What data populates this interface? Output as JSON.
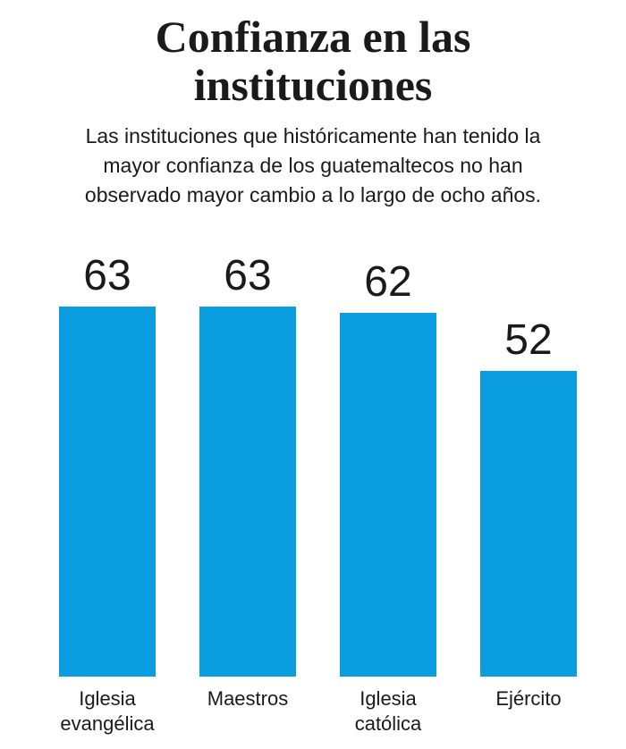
{
  "chart_data": {
    "type": "bar",
    "title": "Confianza en las instituciones",
    "subtitle": "Las instituciones que históricamente han tenido la mayor confianza de los guatemaltecos no han observado mayor cambio a lo largo de ocho años.",
    "categories": [
      "Iglesia evangélica",
      "Maestros",
      "Iglesia católica",
      "Ejército"
    ],
    "values": [
      63,
      63,
      62,
      52
    ],
    "color": "#0a9de0"
  }
}
